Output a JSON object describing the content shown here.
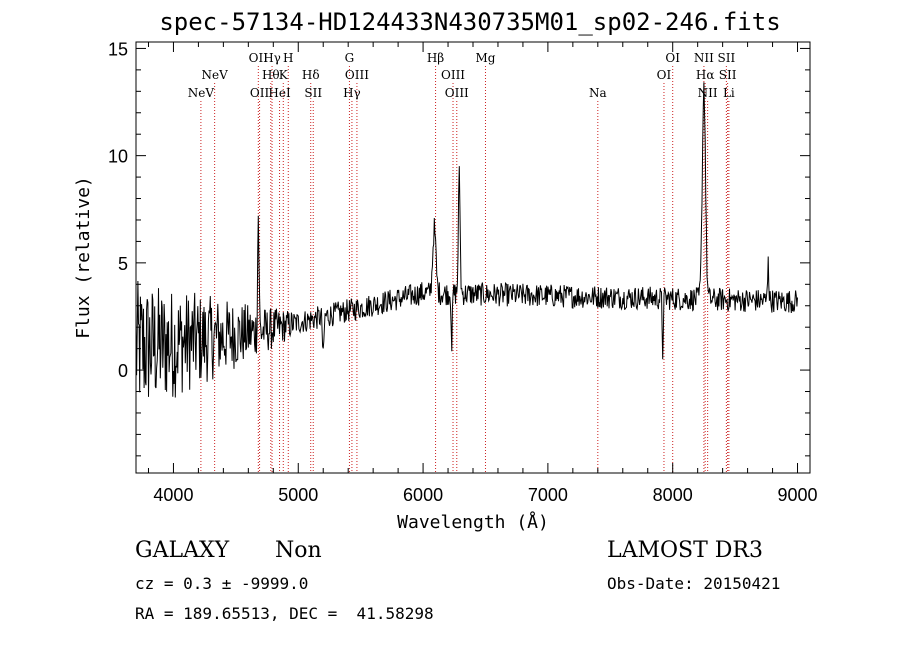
{
  "chart_data": {
    "type": "line",
    "title": "spec-57134-HD124433N430735M01_sp02-246.fits",
    "xlabel": "Wavelength (Å)",
    "ylabel": "Flux (relative)",
    "xlim": [
      3700,
      9100
    ],
    "ylim": [
      -4.8,
      15.3
    ],
    "xticks": [
      4000,
      5000,
      6000,
      7000,
      8000,
      9000
    ],
    "yticks": [
      0,
      5,
      10,
      15
    ],
    "line_color": "#000000",
    "marker_color": "#cc2222",
    "line_markers": [
      {
        "label": "NeV",
        "x": 4220,
        "row": 3
      },
      {
        "label": "NeV",
        "x": 4330,
        "row": 2
      },
      {
        "label": "OII",
        "x": 4680,
        "row": 1
      },
      {
        "label": "OII",
        "x": 4690,
        "row": 3
      },
      {
        "label": "Hθ",
        "x": 4780,
        "row": 2
      },
      {
        "label": "Hγ",
        "x": 4790,
        "row": 1
      },
      {
        "label": "HeI",
        "x": 4850,
        "row": 3
      },
      {
        "label": "H",
        "x": 4920,
        "row": 1
      },
      {
        "label": "K",
        "x": 4880,
        "row": 2
      },
      {
        "label": "Hδ",
        "x": 5100,
        "row": 2
      },
      {
        "label": "SII",
        "x": 5120,
        "row": 3
      },
      {
        "label": "G",
        "x": 5410,
        "row": 1
      },
      {
        "label": "OIII",
        "x": 5470,
        "row": 2
      },
      {
        "label": "Hγ",
        "x": 5430,
        "row": 3
      },
      {
        "label": "Hβ",
        "x": 6100,
        "row": 1
      },
      {
        "label": "OIII",
        "x": 6240,
        "row": 2
      },
      {
        "label": "OIII",
        "x": 6270,
        "row": 3
      },
      {
        "label": "Mg",
        "x": 6500,
        "row": 1
      },
      {
        "label": "Na",
        "x": 7400,
        "row": 3
      },
      {
        "label": "OI",
        "x": 8000,
        "row": 1
      },
      {
        "label": "OI",
        "x": 7930,
        "row": 2
      },
      {
        "label": "NII",
        "x": 8250,
        "row": 1
      },
      {
        "label": "Hα",
        "x": 8260,
        "row": 2
      },
      {
        "label": "NII",
        "x": 8280,
        "row": 3
      },
      {
        "label": "SII",
        "x": 8430,
        "row": 1
      },
      {
        "label": "SII",
        "x": 8440,
        "row": 2
      },
      {
        "label": "Li",
        "x": 8450,
        "row": 3
      }
    ],
    "spectrum": {
      "x_start": 3700,
      "x_end": 9000,
      "x_step": 5,
      "noise_amplitude_blue": 3.2,
      "noise_amplitude_red": 0.55,
      "features": [
        {
          "x": 4680,
          "height": 5.5,
          "width": 8
        },
        {
          "x": 6090,
          "height": 3.0,
          "width": 18
        },
        {
          "x": 6290,
          "height": 5.5,
          "width": 10
        },
        {
          "x": 8250,
          "height": 10.0,
          "width": 18
        },
        {
          "x": 7920,
          "height": -2.5,
          "width": 6
        },
        {
          "x": 6230,
          "height": -2.5,
          "width": 6
        },
        {
          "x": 5200,
          "height": -2.0,
          "width": 8
        },
        {
          "x": 8765,
          "height": 2.3,
          "width": 6
        }
      ]
    }
  },
  "info": {
    "class_label": "GALAXY",
    "subclass_label": "Non",
    "survey_label": "LAMOST DR3",
    "cz_text": "cz = 0.3 ± -9999.0",
    "obs_date_text": "Obs-Date: 20150421",
    "coords_text": "RA = 189.65513, DEC =  41.58298"
  }
}
